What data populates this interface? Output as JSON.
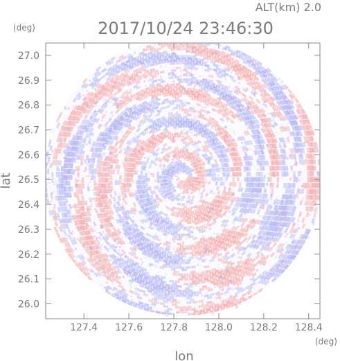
{
  "header": {
    "altitude_label": "ALT(km) 2.0",
    "timestamp": "2017/10/24 23:46:30",
    "y_unit": "(deg)",
    "x_unit": "(deg)"
  },
  "chart_data": {
    "type": "heatmap",
    "title": "2017/10/24 23:46:30",
    "subtitle": "ALT(km) 2.0",
    "xlabel": "lon",
    "ylabel": "lat",
    "x_unit": "(deg)",
    "y_unit": "(deg)",
    "xlim": [
      127.23,
      128.45
    ],
    "ylim": [
      25.94,
      27.05
    ],
    "x_ticks": [
      127.4,
      127.6,
      127.8,
      128.0,
      128.2,
      128.4
    ],
    "x_tick_labels": [
      "127.4",
      "127.6",
      "127.8",
      "128.0",
      "128.2",
      "128.4"
    ],
    "y_ticks": [
      26.0,
      26.1,
      26.2,
      26.3,
      26.4,
      26.5,
      26.6,
      26.7,
      26.8,
      26.9,
      27.0
    ],
    "y_tick_labels": [
      "26.0",
      "26.1",
      "26.2",
      "26.3",
      "26.4",
      "26.5",
      "26.6",
      "26.7",
      "26.8",
      "26.9",
      "27.0"
    ],
    "radar_center": [
      127.84,
      26.51
    ],
    "field_shape": "circular PPI scan",
    "grid": false,
    "colors": {
      "positive": "#f4a6a6",
      "negative": "#a9adf3",
      "neutral": "#ffffff",
      "axes": "#8a8a8a",
      "text": "#7a7a7a"
    }
  }
}
